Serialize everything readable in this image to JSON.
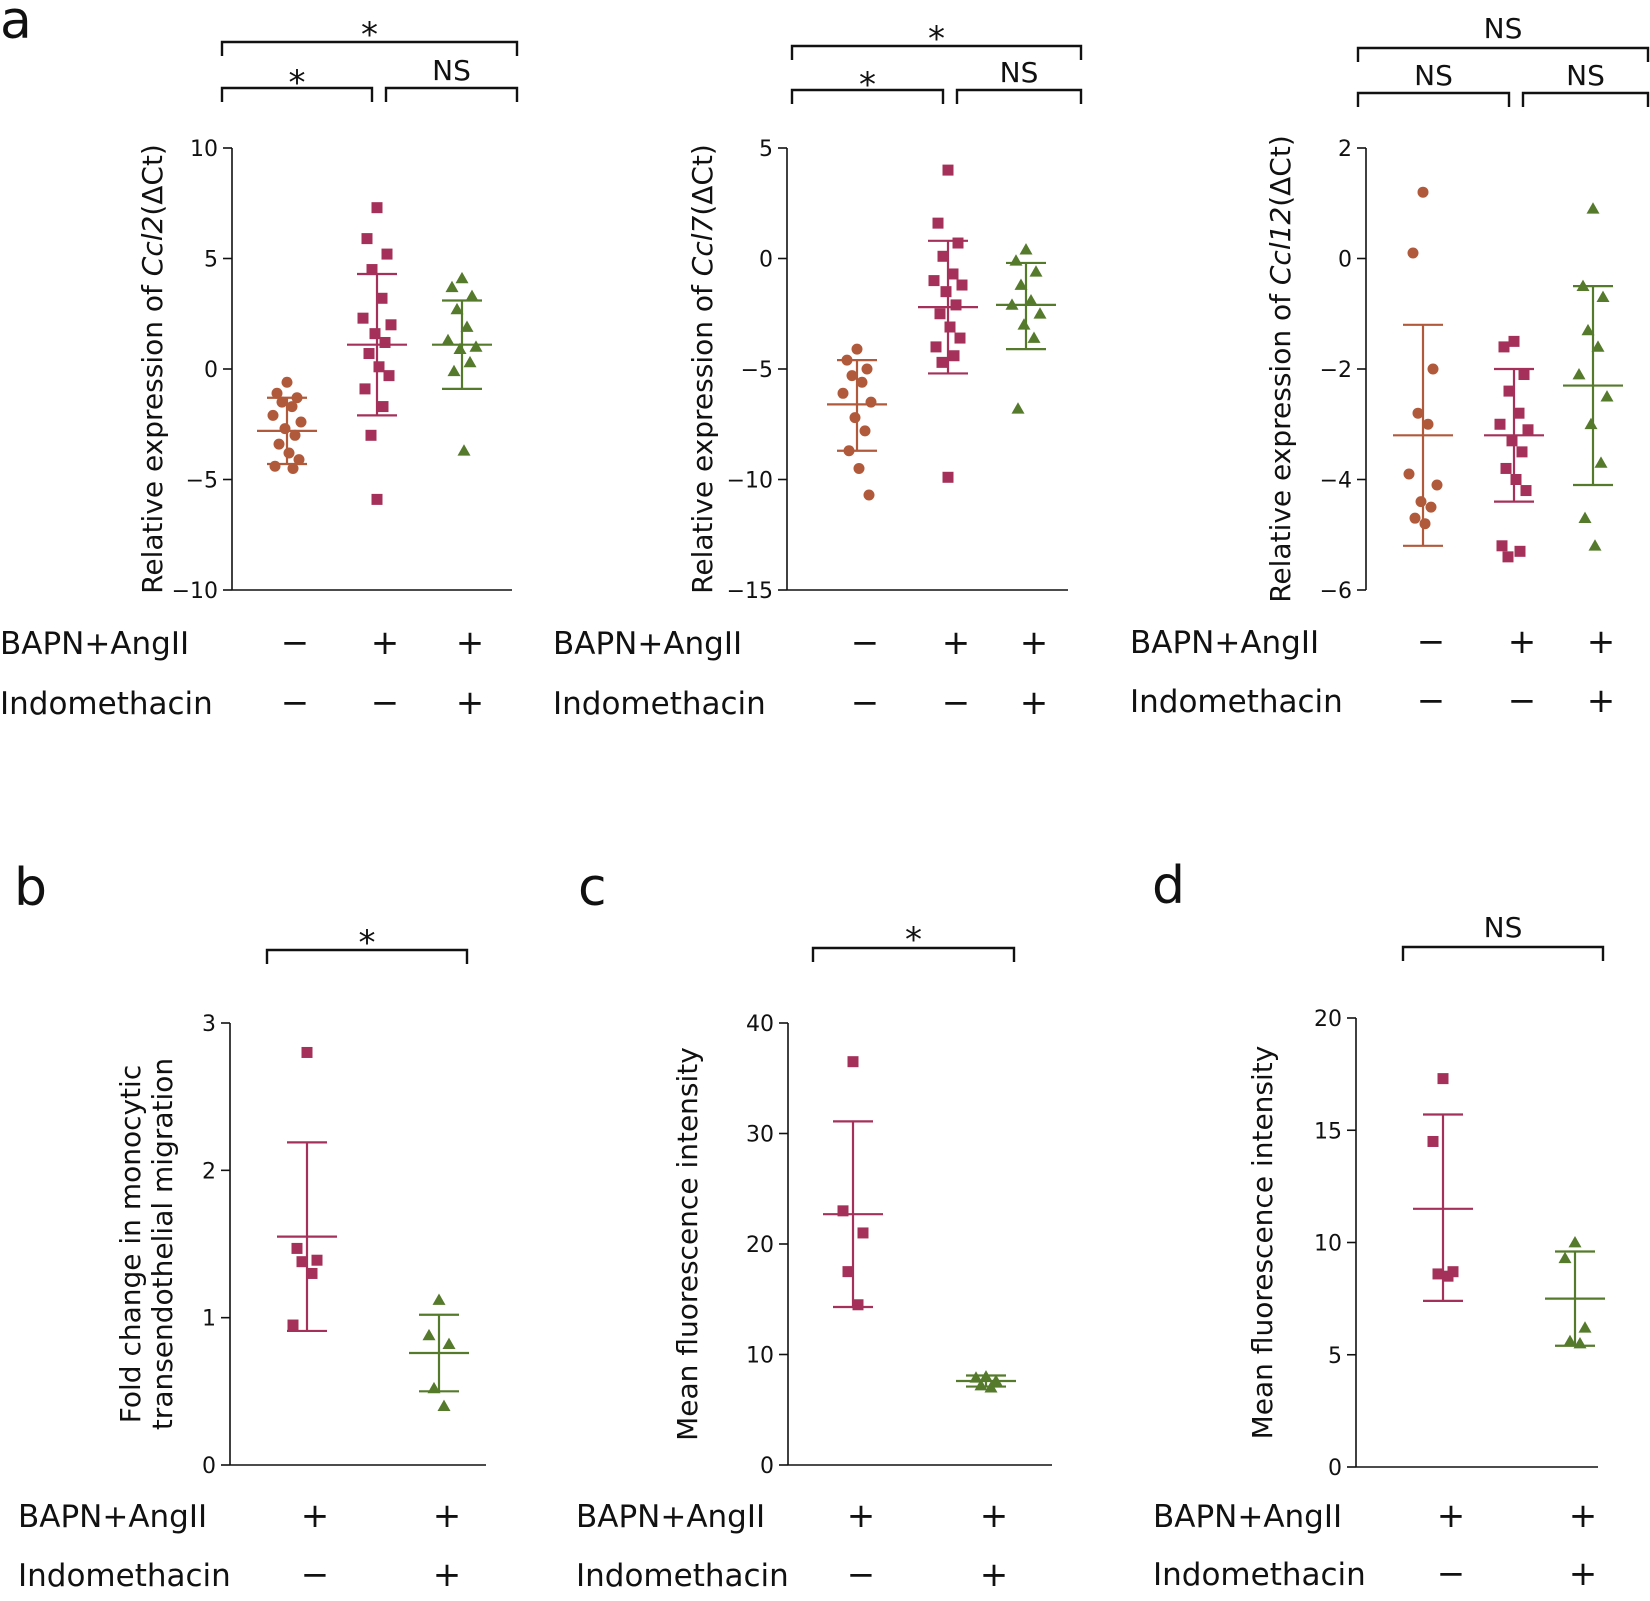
{
  "chart_data": [
    {
      "id": "a1",
      "panel_letter": "a",
      "type": "scatter",
      "ylabel_prefix": "Relative expression of ",
      "ylabel_gene": "Ccl2",
      "ylabel_suffix": "(ΔCt)",
      "ylim": [
        -10,
        10
      ],
      "yticks": [
        10,
        5,
        0,
        -5,
        -10
      ],
      "ytick_labels": [
        "10",
        "5",
        "0",
        "−5",
        "−10"
      ],
      "conditions": [
        {
          "label": "BAPN+AngII",
          "signs": [
            "−",
            "+",
            "+"
          ]
        },
        {
          "label": "Indomethacin",
          "signs": [
            "−",
            "−",
            "+"
          ]
        }
      ],
      "significance": [
        {
          "from": 0,
          "to": 1,
          "label": "*",
          "level": 1
        },
        {
          "from": 1,
          "to": 2,
          "label": "NS",
          "level": 1
        },
        {
          "from": 0,
          "to": 2,
          "label": "*",
          "level": 2
        }
      ],
      "groups": [
        {
          "marker": "circle",
          "color": "#B15A3B",
          "mean": -2.8,
          "sd_low": -4.3,
          "sd_high": -1.3,
          "points": [
            -0.6,
            -1.1,
            -1.3,
            -1.5,
            -1.7,
            -2.1,
            -2.4,
            -2.7,
            -3.0,
            -3.4,
            -3.8,
            -4.1,
            -4.4,
            -4.5
          ]
        },
        {
          "marker": "square",
          "color": "#A5315A",
          "mean": 1.1,
          "sd_low": -2.1,
          "sd_high": 4.3,
          "points": [
            7.3,
            5.9,
            5.2,
            4.5,
            3.2,
            2.3,
            2.0,
            1.6,
            1.2,
            0.7,
            0.1,
            -0.3,
            -0.9,
            -1.7,
            -3.0,
            -5.9
          ]
        },
        {
          "marker": "triangle",
          "color": "#557A2B",
          "mean": 1.1,
          "sd_low": -0.9,
          "sd_high": 3.1,
          "points": [
            4.1,
            3.7,
            3.3,
            2.7,
            1.9,
            1.3,
            1.0,
            0.9,
            0.3,
            -0.1,
            -3.7
          ]
        }
      ]
    },
    {
      "id": "a2",
      "panel_letter": "",
      "type": "scatter",
      "ylabel_prefix": "Relative expression of ",
      "ylabel_gene": "Ccl7",
      "ylabel_suffix": "(ΔCt)",
      "ylim": [
        -15,
        5
      ],
      "yticks": [
        5,
        0,
        -5,
        -10,
        -15
      ],
      "ytick_labels": [
        "5",
        "0",
        "−5",
        "−10",
        "−15"
      ],
      "conditions": [
        {
          "label": "BAPN+AngII",
          "signs": [
            "−",
            "+",
            "+"
          ]
        },
        {
          "label": "Indomethacin",
          "signs": [
            "−",
            "−",
            "+"
          ]
        }
      ],
      "significance": [
        {
          "from": 0,
          "to": 1,
          "label": "*",
          "level": 1
        },
        {
          "from": 1,
          "to": 2,
          "label": "NS",
          "level": 1
        },
        {
          "from": 0,
          "to": 2,
          "label": "*",
          "level": 2
        }
      ],
      "groups": [
        {
          "marker": "circle",
          "color": "#B15A3B",
          "mean": -6.6,
          "sd_low": -8.7,
          "sd_high": -4.6,
          "points": [
            -4.1,
            -4.6,
            -5.0,
            -5.3,
            -5.6,
            -6.1,
            -6.5,
            -7.2,
            -7.8,
            -8.7,
            -9.5,
            -10.7
          ]
        },
        {
          "marker": "square",
          "color": "#A5315A",
          "mean": -2.2,
          "sd_low": -5.2,
          "sd_high": 0.8,
          "points": [
            4.0,
            1.6,
            0.7,
            0.1,
            -0.7,
            -1.0,
            -1.2,
            -1.5,
            -2.1,
            -2.5,
            -3.1,
            -3.6,
            -4.0,
            -4.4,
            -4.7,
            -9.9
          ]
        },
        {
          "marker": "triangle",
          "color": "#557A2B",
          "mean": -2.1,
          "sd_low": -4.1,
          "sd_high": -0.2,
          "points": [
            0.4,
            -0.1,
            -0.6,
            -1.2,
            -1.9,
            -2.1,
            -2.5,
            -3.0,
            -3.6,
            -6.8
          ]
        }
      ]
    },
    {
      "id": "a3",
      "panel_letter": "",
      "type": "scatter",
      "ylabel_prefix": "Relative expression of ",
      "ylabel_gene": "Ccl12",
      "ylabel_suffix": "(ΔCt)",
      "ylim": [
        -6,
        2
      ],
      "yticks": [
        2,
        0,
        -2,
        -4,
        -6
      ],
      "ytick_labels": [
        "2",
        "0",
        "−2",
        "−4",
        "−6"
      ],
      "conditions": [
        {
          "label": "BAPN+AngII",
          "signs": [
            "−",
            "+",
            "+"
          ]
        },
        {
          "label": "Indomethacin",
          "signs": [
            "−",
            "−",
            "+"
          ]
        }
      ],
      "significance": [
        {
          "from": 0,
          "to": 1,
          "label": "NS",
          "level": 1
        },
        {
          "from": 1,
          "to": 2,
          "label": "NS",
          "level": 1
        },
        {
          "from": 0,
          "to": 2,
          "label": "NS",
          "level": 2
        }
      ],
      "groups": [
        {
          "marker": "circle",
          "color": "#B15A3B",
          "mean": -3.2,
          "sd_low": -5.2,
          "sd_high": -1.2,
          "points": [
            1.2,
            0.1,
            -2.0,
            -2.8,
            -3.0,
            -3.9,
            -4.1,
            -4.4,
            -4.5,
            -4.7,
            -4.8
          ]
        },
        {
          "marker": "square",
          "color": "#A5315A",
          "mean": -3.2,
          "sd_low": -4.4,
          "sd_high": -2.0,
          "points": [
            -1.5,
            -1.6,
            -2.1,
            -2.4,
            -2.8,
            -3.0,
            -3.1,
            -3.3,
            -3.5,
            -3.8,
            -4.0,
            -4.2,
            -5.2,
            -5.3,
            -5.4
          ]
        },
        {
          "marker": "triangle",
          "color": "#557A2B",
          "mean": -2.3,
          "sd_low": -4.1,
          "sd_high": -0.5,
          "points": [
            0.9,
            -0.5,
            -0.7,
            -1.3,
            -1.6,
            -2.1,
            -2.5,
            -3.0,
            -3.7,
            -4.7,
            -5.2
          ]
        }
      ]
    },
    {
      "id": "b",
      "panel_letter": "b",
      "type": "scatter",
      "ylabel_lines": [
        "Fold change in monocytic",
        "transendothelial migration"
      ],
      "ylim": [
        0,
        3
      ],
      "yticks": [
        3,
        2,
        1,
        0
      ],
      "ytick_labels": [
        "3",
        "2",
        "1",
        "0"
      ],
      "conditions": [
        {
          "label": "BAPN+AngII",
          "signs": [
            "+",
            "+"
          ]
        },
        {
          "label": "Indomethacin",
          "signs": [
            "−",
            "+"
          ]
        }
      ],
      "significance": [
        {
          "from": 0,
          "to": 1,
          "label": "*",
          "level": 1
        }
      ],
      "groups": [
        {
          "marker": "square",
          "color": "#A5315A",
          "mean": 1.55,
          "sd_low": 0.91,
          "sd_high": 2.19,
          "points": [
            2.8,
            1.47,
            1.39,
            1.38,
            1.3,
            0.95
          ]
        },
        {
          "marker": "triangle",
          "color": "#557A2B",
          "mean": 0.76,
          "sd_low": 0.5,
          "sd_high": 1.02,
          "points": [
            1.12,
            0.88,
            0.82,
            0.52,
            0.4
          ]
        }
      ]
    },
    {
      "id": "c",
      "panel_letter": "c",
      "type": "scatter",
      "ylabel_lines": [
        "Mean fluorescence intensity"
      ],
      "ylim": [
        0,
        40
      ],
      "yticks": [
        40,
        30,
        20,
        10,
        0
      ],
      "ytick_labels": [
        "40",
        "30",
        "20",
        "10",
        "0"
      ],
      "conditions": [
        {
          "label": "BAPN+AngII",
          "signs": [
            "+",
            "+"
          ]
        },
        {
          "label": "Indomethacin",
          "signs": [
            "−",
            "+"
          ]
        }
      ],
      "significance": [
        {
          "from": 0,
          "to": 1,
          "label": "*",
          "level": 1
        }
      ],
      "groups": [
        {
          "marker": "square",
          "color": "#A5315A",
          "mean": 22.7,
          "sd_low": 14.3,
          "sd_high": 31.1,
          "points": [
            36.5,
            23.0,
            21.0,
            17.5,
            14.5
          ]
        },
        {
          "marker": "triangle",
          "color": "#557A2B",
          "mean": 7.6,
          "sd_low": 7.1,
          "sd_high": 8.1,
          "points": [
            8.0,
            7.9,
            7.6,
            7.2,
            7.0
          ]
        }
      ]
    },
    {
      "id": "d",
      "panel_letter": "d",
      "type": "scatter",
      "ylabel_lines": [
        "Mean fluorescence intensity"
      ],
      "ylim": [
        0,
        20
      ],
      "yticks": [
        20,
        15,
        10,
        5,
        0
      ],
      "ytick_labels": [
        "20",
        "15",
        "10",
        "5",
        "0"
      ],
      "conditions": [
        {
          "label": "BAPN+AngII",
          "signs": [
            "+",
            "+"
          ]
        },
        {
          "label": "Indomethacin",
          "signs": [
            "−",
            "+"
          ]
        }
      ],
      "significance": [
        {
          "from": 0,
          "to": 1,
          "label": "NS",
          "level": 1
        }
      ],
      "groups": [
        {
          "marker": "square",
          "color": "#A5315A",
          "mean": 11.5,
          "sd_low": 7.4,
          "sd_high": 15.7,
          "points": [
            17.3,
            14.5,
            8.7,
            8.6,
            8.5
          ]
        },
        {
          "marker": "triangle",
          "color": "#557A2B",
          "mean": 7.5,
          "sd_low": 5.4,
          "sd_high": 9.6,
          "points": [
            10.0,
            9.3,
            6.2,
            5.6,
            5.5
          ]
        }
      ]
    }
  ]
}
